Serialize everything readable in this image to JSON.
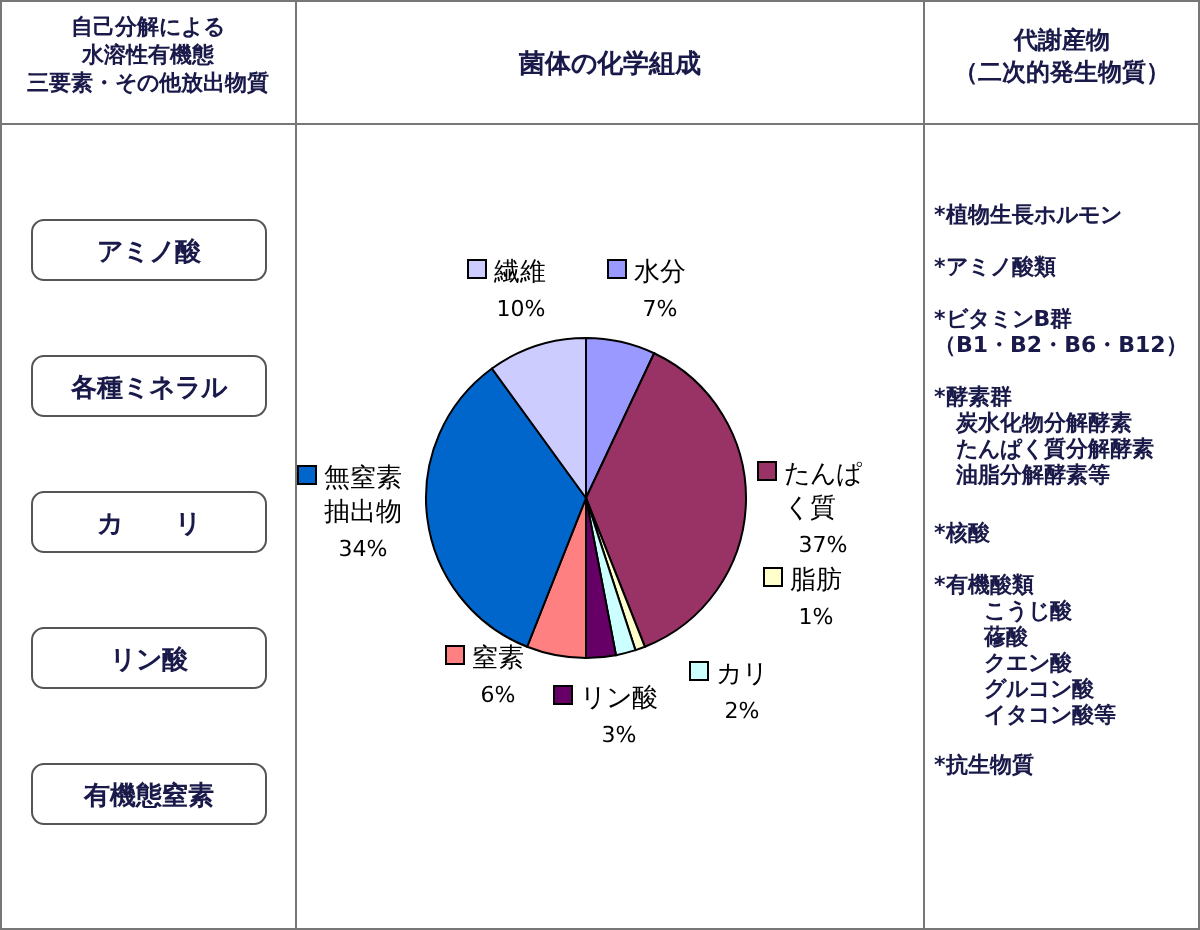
{
  "chart_data": {
    "type": "pie",
    "title": "菌体の化学組成",
    "categories": [
      "水分",
      "たんぱく質",
      "脂肪",
      "カリ",
      "リン酸",
      "窒素",
      "無窒素抽出物",
      "繊維"
    ],
    "values": [
      7,
      37,
      1,
      2,
      3,
      6,
      34,
      10
    ],
    "value_labels": [
      "7%",
      "37%",
      "1%",
      "2%",
      "3%",
      "6%",
      "34%",
      "10%"
    ],
    "colors": [
      "#9999ff",
      "#993366",
      "#ffffcc",
      "#ccffff",
      "#660066",
      "#ff8080",
      "#0066cc",
      "#ccccff"
    ],
    "legend": "right",
    "annotations": [
      "自己分解による",
      "水溶性有機態",
      "三要素・その他放出物質",
      "アミノ酸",
      "各種ミネラル",
      "カ　　リ",
      "リン酸",
      "有機態窒素",
      "代謝産物",
      "（二次的発生物質）",
      "*植物生長ホルモン",
      "*アミノ酸類",
      "*ビタミンB群",
      "（B1・B2・B6・B12）",
      "*酵素群",
      "炭水化物分解酵素",
      "たんぱく質分解酵素",
      "油脂分解酵素等",
      "*核酸",
      "*有機酸類",
      "こうじ酸",
      "蓚酸",
      "クエン酸",
      "グルコン酸",
      "イタコン酸等",
      "*抗生物質"
    ]
  }
}
